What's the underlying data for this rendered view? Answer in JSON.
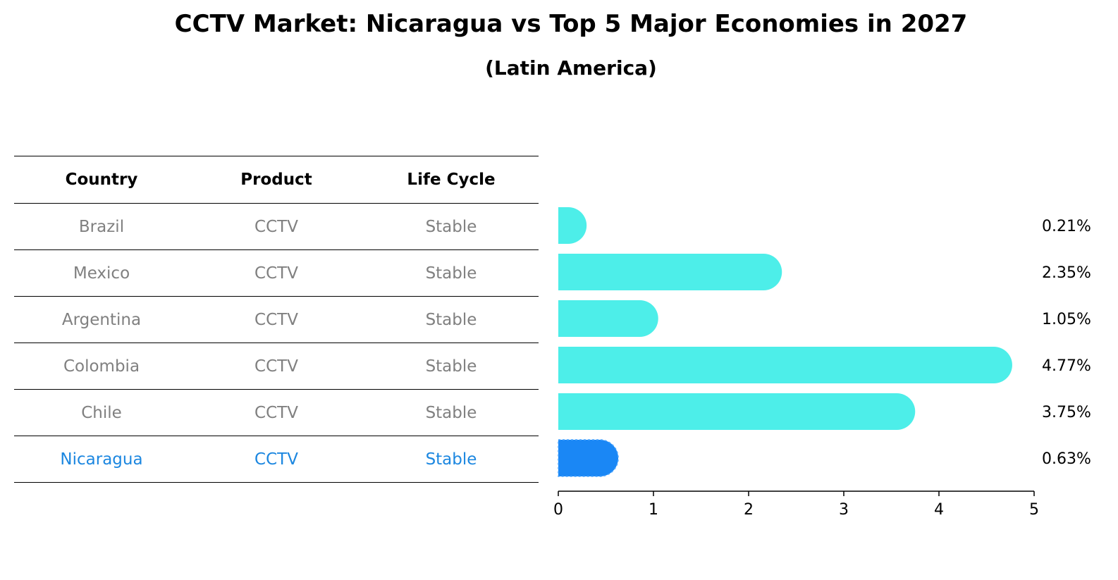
{
  "chart_data": {
    "type": "bar",
    "orientation": "horizontal",
    "title": "CCTV Market: Nicaragua vs Top 5 Major Economies in 2027",
    "subtitle": "(Latin America)",
    "table": {
      "headers": [
        "Country",
        "Product",
        "Life Cycle"
      ],
      "rows": [
        {
          "country": "Brazil",
          "product": "CCTV",
          "life_cycle": "Stable"
        },
        {
          "country": "Mexico",
          "product": "CCTV",
          "life_cycle": "Stable"
        },
        {
          "country": "Argentina",
          "product": "CCTV",
          "life_cycle": "Stable"
        },
        {
          "country": "Colombia",
          "product": "CCTV",
          "life_cycle": "Stable"
        },
        {
          "country": "Chile",
          "product": "CCTV",
          "life_cycle": "Stable"
        },
        {
          "country": "Nicaragua",
          "product": "CCTV",
          "life_cycle": "Stable"
        }
      ]
    },
    "categories": [
      "Brazil",
      "Mexico",
      "Argentina",
      "Colombia",
      "Chile",
      "Nicaragua"
    ],
    "values": [
      0.21,
      2.35,
      1.05,
      4.77,
      3.75,
      0.63
    ],
    "value_labels": [
      "0.21%",
      "2.35%",
      "1.05%",
      "4.77%",
      "3.75%",
      "0.63%"
    ],
    "xlim": [
      0,
      5
    ],
    "xticks": [
      "0",
      "1",
      "2",
      "3",
      "4",
      "5"
    ],
    "highlight": "Nicaragua",
    "colors": {
      "bar": "#4deee9",
      "highlight_bar": "#1a87f5",
      "highlight_text": "#1c87e0",
      "muted_text": "#808080"
    }
  }
}
